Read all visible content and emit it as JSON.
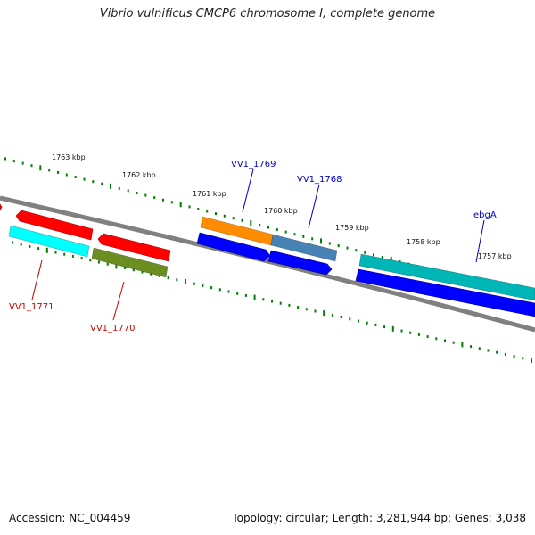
{
  "title": "Vibrio vulnificus CMCP6 chromosome I, complete genome",
  "footer": {
    "accession": "Accession: NC_004459",
    "summary": "Topology: circular; Length: 3,281,944 bp; Genes: 3,038"
  },
  "kbp_labels": [
    "1763 kbp",
    "1762 kbp",
    "1761 kbp",
    "1760 kbp",
    "1759 kbp",
    "1758 kbp",
    "1757 kbp"
  ],
  "genes": [
    {
      "name": "VV1_1771",
      "strand": "minus",
      "fill": "#00ffff",
      "label_color": "#cc0000"
    },
    {
      "name": "VV1_1770",
      "strand": "minus",
      "fill": "#6b8e23",
      "label_color": "#cc0000"
    },
    {
      "name": "VV1_1769",
      "strand": "plus",
      "fill": "#ff8c00",
      "label_color": "#0000cc"
    },
    {
      "name": "VV1_1768",
      "strand": "plus",
      "fill": "#4682b4",
      "label_color": "#0000cc"
    },
    {
      "name": "ebgA",
      "strand": "plus",
      "fill": "#00b5b5",
      "label_color": "#0000cc"
    }
  ],
  "colors": {
    "backbone": "#808080",
    "ticks": "#008000",
    "minus_strand_arrow": "#ff0000",
    "plus_strand_arrow": "#0000ff"
  }
}
